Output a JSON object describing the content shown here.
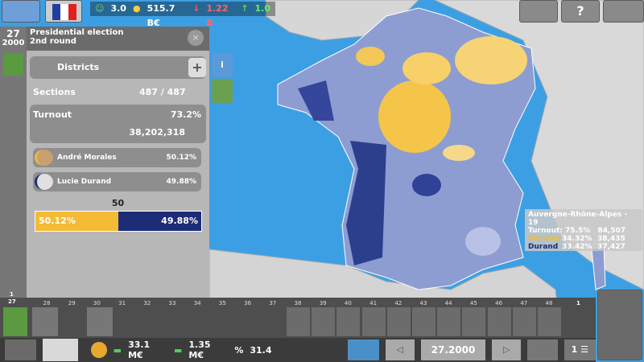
{
  "top_bar": {
    "approval": "3.0",
    "treasury": "515.7 B€",
    "deficit": "1.22 B",
    "growth": "1.0"
  },
  "date": {
    "day": "27",
    "year": "2000"
  },
  "panel": {
    "title": "Presidential election",
    "subtitle": "2nd round",
    "districts_button": "Districts",
    "sections": {
      "label": "Sections",
      "value": "487 / 487"
    },
    "turnout": {
      "label": "Turnout",
      "percent": "73.2%",
      "votes": "38,202,318"
    },
    "candidates": [
      {
        "name": "André Morales",
        "percent": "50.12%"
      },
      {
        "name": "Lucie Durand",
        "percent": "49.88%"
      }
    ],
    "majority_marker": "50",
    "bar": {
      "left": "50.12%",
      "right": "49.88%"
    }
  },
  "tooltip": {
    "region": "Auvergne-Rhône-Alpes - 19",
    "turnout": "Turnout: 75.5%",
    "turnout_votes": "84,507",
    "rows": [
      {
        "name": "Morales",
        "percent": "34.32%",
        "votes": "38,435"
      },
      {
        "name": "Durand",
        "percent": "33.42%",
        "votes": "37,427"
      }
    ]
  },
  "timeline": {
    "current_marker": [
      "1",
      "27"
    ],
    "days": [
      "28",
      "29",
      "30",
      "31",
      "32",
      "33",
      "34",
      "35",
      "36",
      "37",
      "38",
      "39",
      "40",
      "41",
      "42",
      "43",
      "44",
      "45",
      "46",
      "47",
      "48"
    ],
    "end_marker": "1"
  },
  "bottom_bar": {
    "income": "33.1 M€",
    "expense": "1.35 M€",
    "rate": "31.4",
    "date": "27.2000",
    "count": "1"
  }
}
